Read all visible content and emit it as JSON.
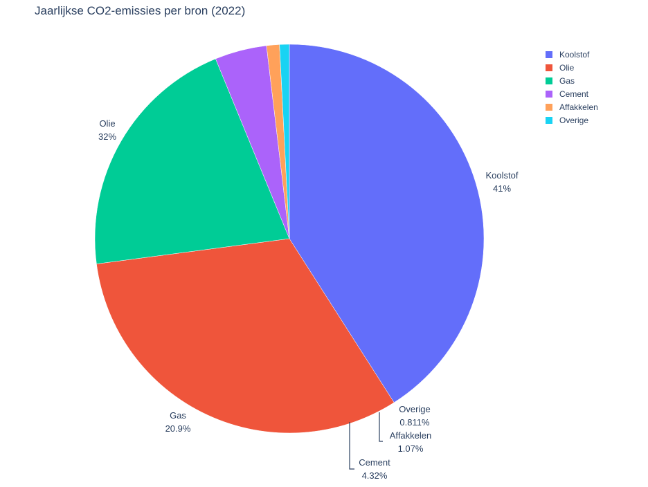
{
  "chart_data": {
    "type": "pie",
    "title": "Jaarlijkse CO2-emissies per bron (2022)",
    "slices": [
      {
        "label": "Koolstof",
        "percent_label": "41%",
        "value": 41.0,
        "color": "#636efa"
      },
      {
        "label": "Olie",
        "percent_label": "32%",
        "value": 32.0,
        "color": "#ef553b"
      },
      {
        "label": "Gas",
        "percent_label": "20.9%",
        "value": 20.9,
        "color": "#00cc96"
      },
      {
        "label": "Cement",
        "percent_label": "4.32%",
        "value": 4.32,
        "color": "#ab63fa"
      },
      {
        "label": "Affakkelen",
        "percent_label": "1.07%",
        "value": 1.07,
        "color": "#ffa15a"
      },
      {
        "label": "Overige",
        "percent_label": "0.811%",
        "value": 0.811,
        "color": "#19d3f3"
      }
    ],
    "sort": "clockwise from 12 o'clock, Koolstof first",
    "legend_position": "top-right"
  }
}
